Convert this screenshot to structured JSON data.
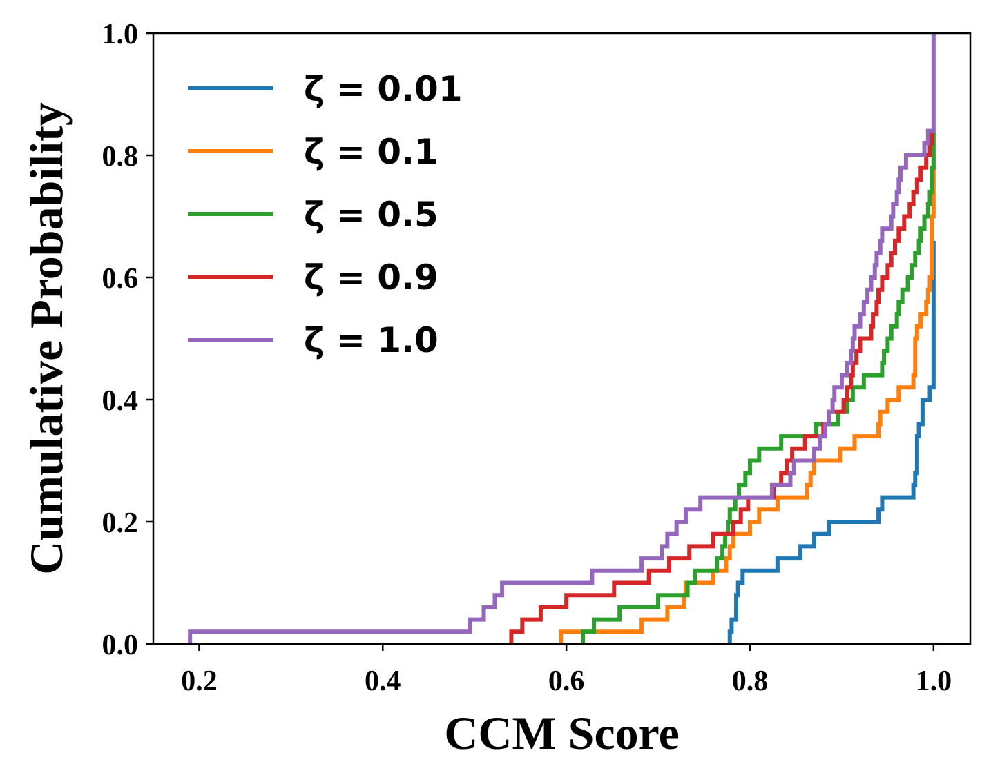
{
  "chart_data": {
    "type": "line",
    "step": true,
    "xlabel": "CCM Score",
    "ylabel": "Cumulative Probability",
    "xlim": [
      0.15,
      1.04
    ],
    "ylim": [
      0.0,
      1.0
    ],
    "x_ticks": [
      "0.2",
      "0.4",
      "0.6",
      "0.8",
      "1.0"
    ],
    "y_ticks": [
      "0.0",
      "0.2",
      "0.4",
      "0.6",
      "0.8",
      "1.0"
    ],
    "grid": false,
    "legend_position": "top-left",
    "series": [
      {
        "name": "ζ = 0.01",
        "color": "#1f77b4",
        "points": [
          [
            0.778,
            0.02
          ],
          [
            0.78,
            0.04
          ],
          [
            0.785,
            0.08
          ],
          [
            0.787,
            0.1
          ],
          [
            0.792,
            0.12
          ],
          [
            0.83,
            0.14
          ],
          [
            0.855,
            0.16
          ],
          [
            0.87,
            0.18
          ],
          [
            0.886,
            0.2
          ],
          [
            0.94,
            0.22
          ],
          [
            0.944,
            0.24
          ],
          [
            0.978,
            0.26
          ],
          [
            0.98,
            0.28
          ],
          [
            0.982,
            0.34
          ],
          [
            0.984,
            0.36
          ],
          [
            0.988,
            0.4
          ],
          [
            0.996,
            0.42
          ],
          [
            1.0,
            0.6
          ],
          [
            1.0,
            0.66
          ]
        ]
      },
      {
        "name": "ζ = 0.1",
        "color": "#ff7f0e",
        "points": [
          [
            0.594,
            0.02
          ],
          [
            0.63,
            0.02
          ],
          [
            0.682,
            0.04
          ],
          [
            0.71,
            0.06
          ],
          [
            0.728,
            0.08
          ],
          [
            0.73,
            0.1
          ],
          [
            0.76,
            0.12
          ],
          [
            0.774,
            0.14
          ],
          [
            0.778,
            0.16
          ],
          [
            0.782,
            0.18
          ],
          [
            0.8,
            0.2
          ],
          [
            0.81,
            0.22
          ],
          [
            0.83,
            0.24
          ],
          [
            0.862,
            0.26
          ],
          [
            0.866,
            0.28
          ],
          [
            0.87,
            0.3
          ],
          [
            0.898,
            0.32
          ],
          [
            0.914,
            0.34
          ],
          [
            0.94,
            0.36
          ],
          [
            0.942,
            0.38
          ],
          [
            0.95,
            0.4
          ],
          [
            0.962,
            0.42
          ],
          [
            0.978,
            0.44
          ],
          [
            0.98,
            0.5
          ],
          [
            0.982,
            0.52
          ],
          [
            0.986,
            0.54
          ],
          [
            0.992,
            0.56
          ],
          [
            0.994,
            0.58
          ],
          [
            0.996,
            0.6
          ],
          [
            0.998,
            0.7
          ],
          [
            1.0,
            0.76
          ],
          [
            1.0,
            0.8
          ]
        ]
      },
      {
        "name": "ζ = 0.5",
        "color": "#2ca02c",
        "points": [
          [
            0.618,
            0.02
          ],
          [
            0.63,
            0.04
          ],
          [
            0.658,
            0.06
          ],
          [
            0.7,
            0.08
          ],
          [
            0.732,
            0.1
          ],
          [
            0.74,
            0.12
          ],
          [
            0.764,
            0.14
          ],
          [
            0.77,
            0.16
          ],
          [
            0.773,
            0.18
          ],
          [
            0.776,
            0.2
          ],
          [
            0.778,
            0.22
          ],
          [
            0.784,
            0.24
          ],
          [
            0.788,
            0.26
          ],
          [
            0.795,
            0.28
          ],
          [
            0.8,
            0.3
          ],
          [
            0.81,
            0.32
          ],
          [
            0.834,
            0.34
          ],
          [
            0.872,
            0.36
          ],
          [
            0.896,
            0.38
          ],
          [
            0.906,
            0.4
          ],
          [
            0.912,
            0.42
          ],
          [
            0.924,
            0.44
          ],
          [
            0.944,
            0.46
          ],
          [
            0.946,
            0.48
          ],
          [
            0.95,
            0.5
          ],
          [
            0.954,
            0.52
          ],
          [
            0.96,
            0.54
          ],
          [
            0.962,
            0.56
          ],
          [
            0.966,
            0.58
          ],
          [
            0.972,
            0.6
          ],
          [
            0.976,
            0.62
          ],
          [
            0.98,
            0.64
          ],
          [
            0.984,
            0.66
          ],
          [
            0.986,
            0.68
          ],
          [
            0.99,
            0.7
          ],
          [
            0.994,
            0.72
          ],
          [
            0.996,
            0.74
          ],
          [
            0.998,
            0.78
          ],
          [
            1.0,
            0.8
          ],
          [
            1.0,
            0.84
          ]
        ]
      },
      {
        "name": "ζ = 0.9",
        "color": "#d62728",
        "points": [
          [
            0.54,
            0.02
          ],
          [
            0.552,
            0.04
          ],
          [
            0.572,
            0.06
          ],
          [
            0.6,
            0.08
          ],
          [
            0.652,
            0.1
          ],
          [
            0.69,
            0.12
          ],
          [
            0.712,
            0.14
          ],
          [
            0.734,
            0.16
          ],
          [
            0.76,
            0.18
          ],
          [
            0.782,
            0.2
          ],
          [
            0.79,
            0.22
          ],
          [
            0.798,
            0.24
          ],
          [
            0.826,
            0.26
          ],
          [
            0.834,
            0.28
          ],
          [
            0.84,
            0.3
          ],
          [
            0.846,
            0.32
          ],
          [
            0.86,
            0.34
          ],
          [
            0.88,
            0.36
          ],
          [
            0.886,
            0.38
          ],
          [
            0.902,
            0.4
          ],
          [
            0.906,
            0.42
          ],
          [
            0.91,
            0.44
          ],
          [
            0.912,
            0.46
          ],
          [
            0.916,
            0.48
          ],
          [
            0.92,
            0.5
          ],
          [
            0.932,
            0.52
          ],
          [
            0.934,
            0.54
          ],
          [
            0.938,
            0.56
          ],
          [
            0.94,
            0.58
          ],
          [
            0.944,
            0.6
          ],
          [
            0.95,
            0.62
          ],
          [
            0.954,
            0.64
          ],
          [
            0.958,
            0.66
          ],
          [
            0.962,
            0.68
          ],
          [
            0.968,
            0.7
          ],
          [
            0.974,
            0.72
          ],
          [
            0.978,
            0.74
          ],
          [
            0.982,
            0.76
          ],
          [
            0.986,
            0.78
          ],
          [
            0.992,
            0.8
          ],
          [
            0.996,
            0.82
          ],
          [
            0.998,
            0.84
          ]
        ]
      },
      {
        "name": "ζ = 1.0",
        "color": "#9467bd",
        "points": [
          [
            0.19,
            0.02
          ],
          [
            0.495,
            0.04
          ],
          [
            0.51,
            0.06
          ],
          [
            0.522,
            0.08
          ],
          [
            0.53,
            0.1
          ],
          [
            0.628,
            0.12
          ],
          [
            0.682,
            0.14
          ],
          [
            0.704,
            0.16
          ],
          [
            0.71,
            0.18
          ],
          [
            0.72,
            0.2
          ],
          [
            0.73,
            0.22
          ],
          [
            0.746,
            0.24
          ],
          [
            0.824,
            0.26
          ],
          [
            0.844,
            0.28
          ],
          [
            0.848,
            0.3
          ],
          [
            0.87,
            0.32
          ],
          [
            0.876,
            0.34
          ],
          [
            0.882,
            0.36
          ],
          [
            0.886,
            0.38
          ],
          [
            0.89,
            0.4
          ],
          [
            0.892,
            0.42
          ],
          [
            0.9,
            0.44
          ],
          [
            0.906,
            0.46
          ],
          [
            0.91,
            0.48
          ],
          [
            0.912,
            0.5
          ],
          [
            0.914,
            0.52
          ],
          [
            0.92,
            0.54
          ],
          [
            0.924,
            0.56
          ],
          [
            0.928,
            0.58
          ],
          [
            0.932,
            0.6
          ],
          [
            0.936,
            0.62
          ],
          [
            0.938,
            0.64
          ],
          [
            0.942,
            0.66
          ],
          [
            0.944,
            0.68
          ],
          [
            0.954,
            0.7
          ],
          [
            0.956,
            0.72
          ],
          [
            0.96,
            0.74
          ],
          [
            0.962,
            0.76
          ],
          [
            0.964,
            0.78
          ],
          [
            0.97,
            0.8
          ],
          [
            0.99,
            0.82
          ],
          [
            0.994,
            0.84
          ],
          [
            1.0,
            0.86
          ],
          [
            1.0,
            1.0
          ]
        ]
      }
    ]
  }
}
